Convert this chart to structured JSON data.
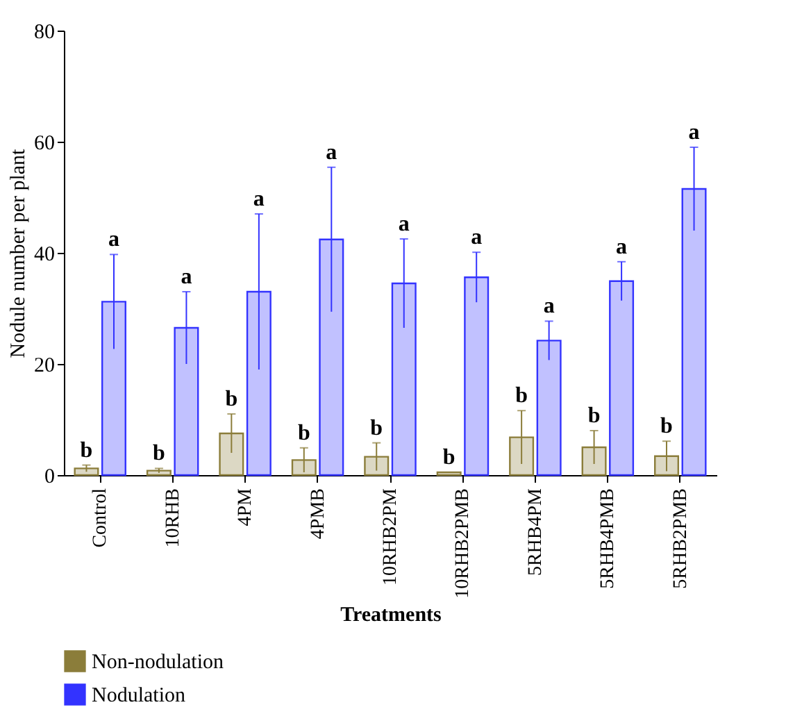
{
  "chart_data": {
    "type": "bar",
    "xlabel": "Treatments",
    "ylabel": "Nodule number per plant",
    "categories": [
      "Control",
      "10RHB",
      "4PM",
      "4PMB",
      "10RHB2PM",
      "10RHB2PMB",
      "5RHB4PM",
      "5RHB4PMB",
      "5RHB2PMB"
    ],
    "series": [
      {
        "name": "Non-nodulation",
        "color": "#8b7d3a",
        "values": [
          1.2,
          0.8,
          7.5,
          2.7,
          3.3,
          0.5,
          6.8,
          5.0,
          3.4
        ],
        "errors": [
          0.6,
          0.4,
          3.5,
          2.2,
          2.5,
          null,
          4.8,
          3.0,
          2.7
        ]
      },
      {
        "name": "Nodulation",
        "color": "#3333ff",
        "values": [
          31.2,
          26.5,
          33.0,
          42.4,
          34.5,
          35.6,
          24.2,
          34.9,
          51.5
        ],
        "errors": [
          8.5,
          6.5,
          14.0,
          13.0,
          8.0,
          4.5,
          3.5,
          3.5,
          7.5
        ]
      }
    ],
    "annotations": [
      "b",
      "a",
      "b",
      "a",
      "b",
      "a",
      "b",
      "a",
      "b",
      "a",
      "b",
      "a",
      "b",
      "a",
      "b",
      "a",
      "b",
      "a"
    ],
    "ylim": [
      0,
      80
    ],
    "yticks": [
      0,
      20,
      40,
      60,
      80
    ],
    "grid": false,
    "legend": "bottom left"
  }
}
